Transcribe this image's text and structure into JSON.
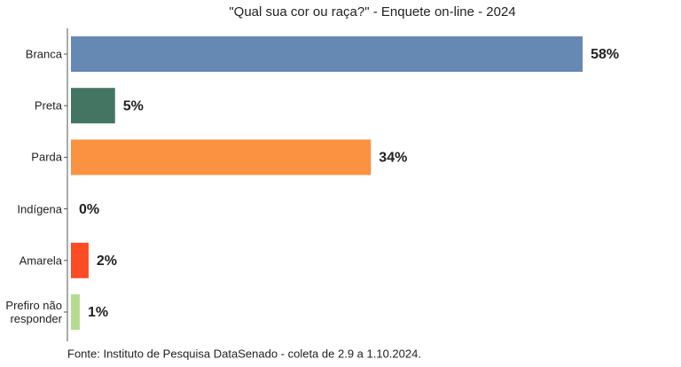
{
  "chart_data": {
    "type": "bar",
    "orientation": "horizontal",
    "title": "\"Qual sua cor ou raça?\" - Enquete on-line - 2024",
    "source": "Fonte: Instituto de Pesquisa DataSenado - coleta de 2.9 a 1.10.2024.",
    "categories": [
      "Branca",
      "Preta",
      "Parda",
      "Indígena",
      "Amarela",
      "Prefiro não responder"
    ],
    "values": [
      58,
      5,
      34,
      0,
      2,
      1
    ],
    "value_labels": [
      "58%",
      "5%",
      "34%",
      "0%",
      "2%",
      "1%"
    ],
    "colors": [
      "#6689b3",
      "#447562",
      "#fa9241",
      "#888888",
      "#fb4c23",
      "#b5dc8e"
    ]
  }
}
